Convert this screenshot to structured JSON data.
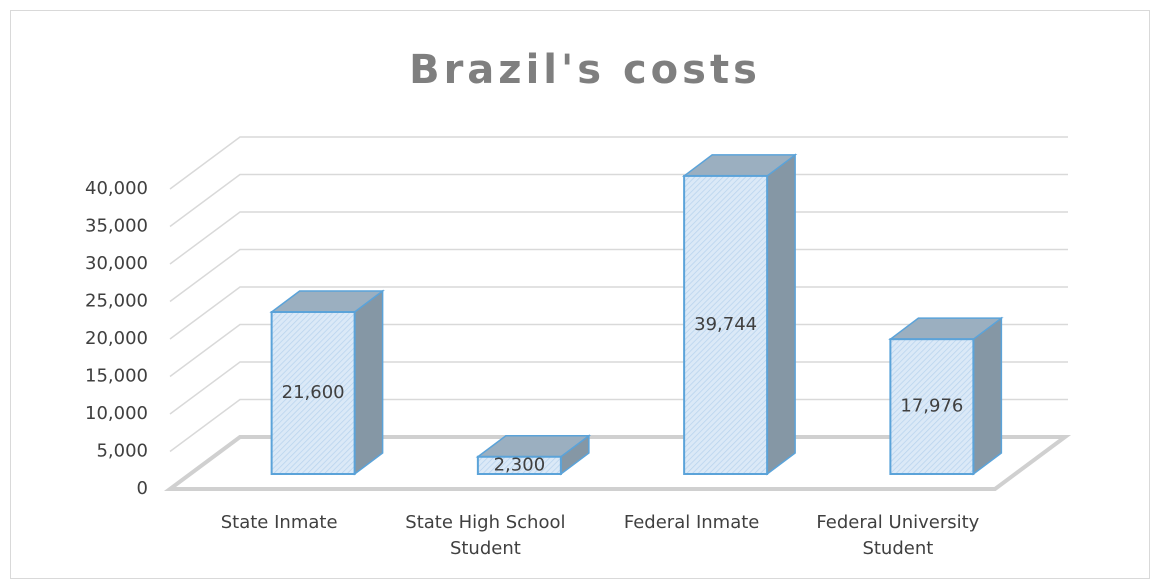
{
  "chart_data": {
    "type": "bar3d",
    "title": "Brazil's costs",
    "categories": [
      "State Inmate",
      "State High School Student",
      "Federal Inmate",
      "Federal University Student"
    ],
    "values": [
      21600,
      2300,
      39744,
      17976
    ],
    "value_labels": [
      "21,600",
      "2,300",
      "39,744",
      "17,976"
    ],
    "color": "#dbe9f7",
    "ylim": [
      0,
      40000
    ],
    "yticks": [
      0,
      {
        "value": 5000,
        "label": "5,000"
      },
      {
        "value": 10000,
        "label": "10,000"
      },
      {
        "value": 15000,
        "label": "15,000"
      },
      {
        "value": 20000,
        "label": "20,000"
      },
      {
        "value": 25000,
        "label": "25,000"
      },
      {
        "value": 30000,
        "label": "30,000"
      },
      {
        "value": 35000,
        "label": "35,000"
      },
      {
        "value": 40000,
        "label": "40,000"
      }
    ],
    "grid": true
  }
}
